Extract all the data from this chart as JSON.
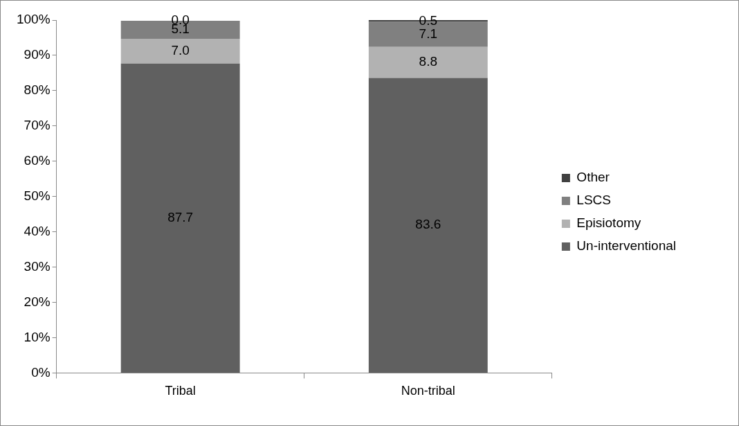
{
  "chart_data": {
    "type": "bar",
    "stacked": true,
    "categories": [
      "Tribal",
      "Non-tribal"
    ],
    "series": [
      {
        "name": "Un-interventional",
        "color": "#606060",
        "values": [
          87.7,
          83.6
        ],
        "value_labels": [
          "87.7",
          "83.6"
        ]
      },
      {
        "name": "Episiotomy",
        "color": "#b2b2b2",
        "values": [
          7.0,
          8.8
        ],
        "value_labels": [
          "7.0",
          "8.8"
        ]
      },
      {
        "name": "LSCS",
        "color": "#808080",
        "values": [
          5.1,
          7.1
        ],
        "value_labels": [
          "5.1",
          "7.1"
        ]
      },
      {
        "name": "Other",
        "color": "#404040",
        "values": [
          0.0,
          0.5
        ],
        "value_labels": [
          "0.0",
          "0.5"
        ]
      }
    ],
    "ylim": [
      0,
      100
    ],
    "yticks": [
      {
        "value": 0,
        "label": "0%"
      },
      {
        "value": 10,
        "label": "10%"
      },
      {
        "value": 20,
        "label": "20%"
      },
      {
        "value": 30,
        "label": "30%"
      },
      {
        "value": 40,
        "label": "40%"
      },
      {
        "value": 50,
        "label": "50%"
      },
      {
        "value": 60,
        "label": "60%"
      },
      {
        "value": 70,
        "label": "70%"
      },
      {
        "value": 80,
        "label": "80%"
      },
      {
        "value": 90,
        "label": "90%"
      },
      {
        "value": 100,
        "label": "100%"
      }
    ],
    "legend": "right"
  }
}
